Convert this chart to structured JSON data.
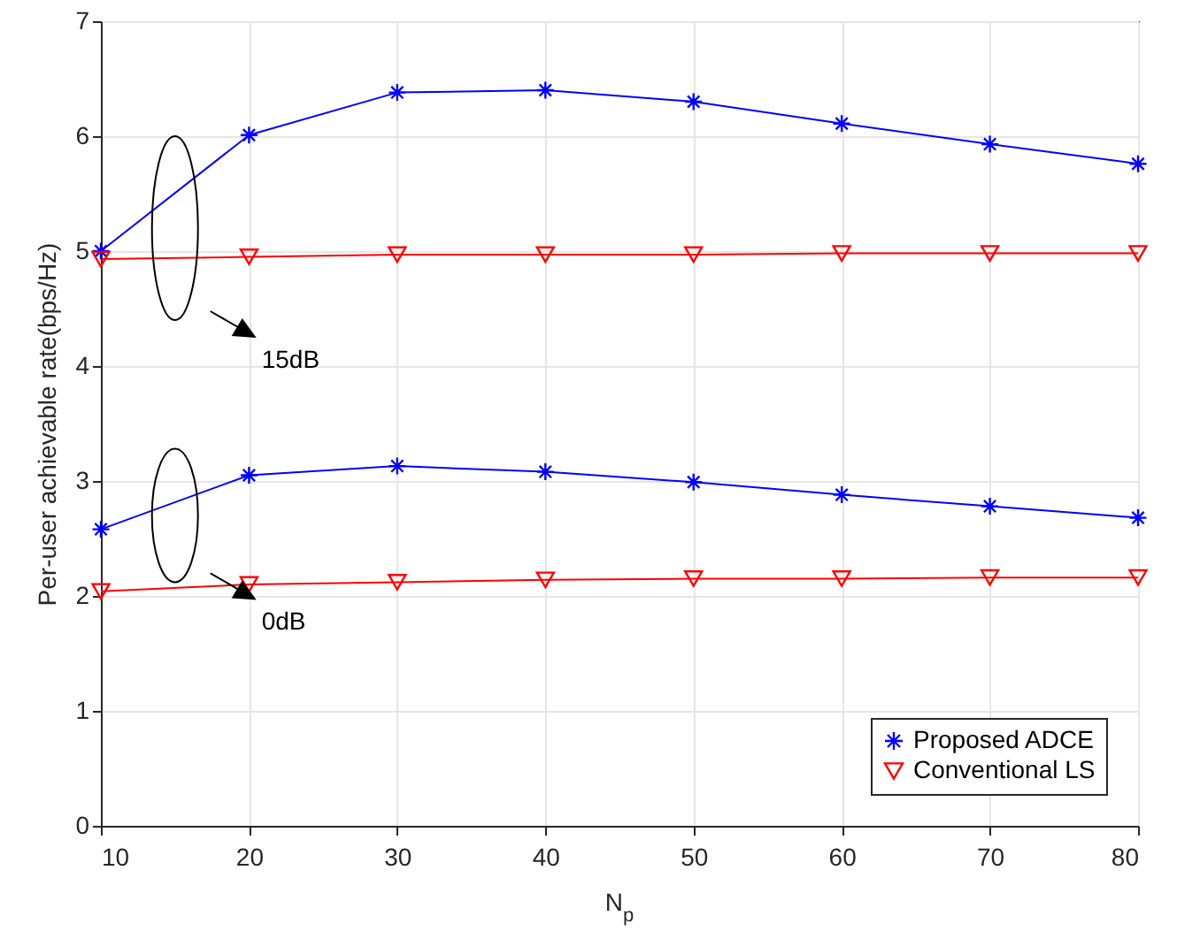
{
  "chart_data": {
    "type": "line",
    "xlabel": "N$_{p}$",
    "ylabel": "Per-user achievable rate(bps/Hz)",
    "x": [
      10,
      20,
      30,
      40,
      50,
      60,
      70,
      80
    ],
    "series": [
      {
        "name": "Proposed ADCE",
        "color": "#0000ff",
        "marker": "cross",
        "values": [
          5.0,
          6.01,
          6.38,
          6.4,
          6.3,
          6.11,
          5.93,
          5.76
        ]
      },
      {
        "name": "Conventional LS",
        "color": "#ff0000",
        "marker": "triangle",
        "values": [
          4.93,
          4.95,
          4.97,
          4.97,
          4.97,
          4.98,
          4.98,
          4.98
        ]
      },
      {
        "color": "#0000ff",
        "marker": "cross",
        "values": [
          2.58,
          3.05,
          3.13,
          3.08,
          2.99,
          2.88,
          2.78,
          2.68
        ]
      },
      {
        "color": "#ff0000",
        "marker": "triangle",
        "values": [
          2.04,
          2.1,
          2.12,
          2.14,
          2.15,
          2.15,
          2.16,
          2.16
        ]
      }
    ],
    "annotations": [
      "15dB",
      "0dB"
    ],
    "xlim": [
      10,
      80
    ],
    "xticks": [
      10,
      20,
      30,
      40,
      50,
      60,
      70,
      80
    ],
    "ylim": [
      0,
      7
    ],
    "yticks": [
      0,
      1,
      2,
      3,
      4,
      5,
      6,
      7
    ],
    "grid": true,
    "legend": "bottom right",
    "line_style": "solid"
  }
}
